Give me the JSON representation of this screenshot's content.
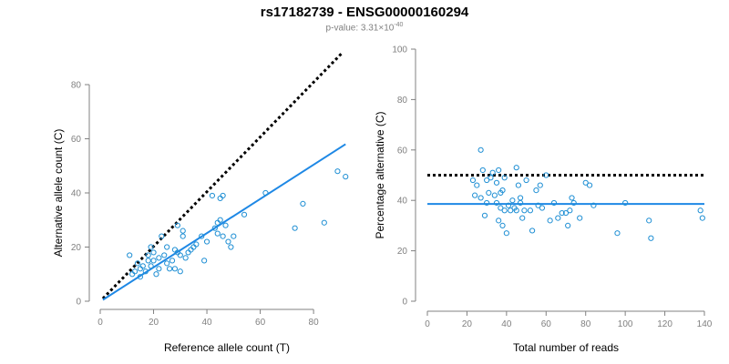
{
  "header": {
    "title": "rs17182739 - ENSG00000160294",
    "subtitle_prefix": "p-value: 3.31×10",
    "subtitle_exponent": "-40"
  },
  "colors": {
    "points": "#1f8fd4",
    "fit_line": "#1e88e5",
    "reference_line": "#000000",
    "axis": "#808080"
  },
  "chart_data": [
    {
      "type": "scatter",
      "xlabel": "Reference allele count (T)",
      "ylabel": "Alternative allele count (C)",
      "xlim": [
        0,
        95
      ],
      "ylim": [
        0,
        80
      ],
      "xticks": [
        0,
        20,
        40,
        60,
        80
      ],
      "yticks": [
        0,
        20,
        40,
        60,
        80
      ],
      "grid": false,
      "points": [
        [
          11,
          17
        ],
        [
          12,
          10
        ],
        [
          13,
          11
        ],
        [
          14,
          14
        ],
        [
          15,
          9
        ],
        [
          15,
          12
        ],
        [
          16,
          13
        ],
        [
          17,
          11
        ],
        [
          18,
          17
        ],
        [
          18,
          15
        ],
        [
          19,
          13
        ],
        [
          19,
          20
        ],
        [
          20,
          18
        ],
        [
          20,
          15
        ],
        [
          21,
          10
        ],
        [
          22,
          12
        ],
        [
          22,
          16
        ],
        [
          23,
          24
        ],
        [
          24,
          17
        ],
        [
          25,
          20
        ],
        [
          25,
          14
        ],
        [
          26,
          12
        ],
        [
          27,
          15
        ],
        [
          28,
          19
        ],
        [
          28,
          12
        ],
        [
          29,
          28
        ],
        [
          29,
          18
        ],
        [
          30,
          11
        ],
        [
          30,
          17
        ],
        [
          31,
          24
        ],
        [
          31,
          26
        ],
        [
          32,
          16
        ],
        [
          33,
          18
        ],
        [
          34,
          19
        ],
        [
          35,
          20
        ],
        [
          36,
          21
        ],
        [
          38,
          24
        ],
        [
          39,
          15
        ],
        [
          40,
          22
        ],
        [
          42,
          39
        ],
        [
          43,
          27
        ],
        [
          44,
          25
        ],
        [
          44,
          29
        ],
        [
          45,
          38
        ],
        [
          45,
          30
        ],
        [
          46,
          39
        ],
        [
          46,
          24
        ],
        [
          47,
          28
        ],
        [
          48,
          22
        ],
        [
          49,
          20
        ],
        [
          50,
          24
        ],
        [
          54,
          32
        ],
        [
          62,
          40
        ],
        [
          73,
          27
        ],
        [
          76,
          36
        ],
        [
          84,
          29
        ],
        [
          89,
          48
        ],
        [
          92,
          46
        ]
      ],
      "reference_line": {
        "type": "dotted",
        "points": [
          [
            1,
            1
          ],
          [
            91,
            92
          ]
        ]
      },
      "fit_line": {
        "type": "solid",
        "points": [
          [
            1,
            0.5
          ],
          [
            92,
            58
          ]
        ]
      }
    },
    {
      "type": "scatter",
      "xlabel": "Total number of reads",
      "ylabel": "Percentage alternative (C)",
      "xlim": [
        0,
        140
      ],
      "ylim": [
        0,
        100
      ],
      "xticks": [
        0,
        20,
        40,
        60,
        80,
        100,
        120,
        140
      ],
      "yticks": [
        0,
        20,
        40,
        60,
        80,
        100
      ],
      "grid": false,
      "points": [
        [
          23,
          48
        ],
        [
          24,
          42
        ],
        [
          25,
          46
        ],
        [
          27,
          41
        ],
        [
          27,
          60
        ],
        [
          28,
          52
        ],
        [
          29,
          34
        ],
        [
          30,
          39
        ],
        [
          30,
          48
        ],
        [
          31,
          43
        ],
        [
          32,
          49
        ],
        [
          33,
          51
        ],
        [
          34,
          42
        ],
        [
          35,
          39
        ],
        [
          35,
          47
        ],
        [
          36,
          32
        ],
        [
          36,
          52
        ],
        [
          37,
          37
        ],
        [
          37,
          43
        ],
        [
          38,
          44
        ],
        [
          38,
          30
        ],
        [
          39,
          36
        ],
        [
          39,
          49
        ],
        [
          40,
          27
        ],
        [
          41,
          38
        ],
        [
          42,
          36
        ],
        [
          43,
          40
        ],
        [
          44,
          37
        ],
        [
          45,
          36
        ],
        [
          45,
          53
        ],
        [
          46,
          46
        ],
        [
          47,
          41
        ],
        [
          47,
          39
        ],
        [
          48,
          33
        ],
        [
          49,
          36
        ],
        [
          50,
          48
        ],
        [
          52,
          36
        ],
        [
          53,
          28
        ],
        [
          55,
          44
        ],
        [
          56,
          38
        ],
        [
          57,
          46
        ],
        [
          58,
          37
        ],
        [
          60,
          50
        ],
        [
          62,
          32
        ],
        [
          64,
          39
        ],
        [
          66,
          33
        ],
        [
          68,
          35
        ],
        [
          70,
          35
        ],
        [
          71,
          30
        ],
        [
          72,
          36
        ],
        [
          73,
          41
        ],
        [
          74,
          39
        ],
        [
          77,
          33
        ],
        [
          80,
          47
        ],
        [
          82,
          46
        ],
        [
          84,
          38
        ],
        [
          96,
          27
        ],
        [
          100,
          39
        ],
        [
          112,
          32
        ],
        [
          113,
          25
        ],
        [
          138,
          36
        ],
        [
          139,
          33
        ]
      ],
      "reference_line": {
        "type": "dotted",
        "points": [
          [
            0,
            50
          ],
          [
            140,
            50
          ]
        ]
      },
      "fit_line": {
        "type": "solid",
        "points": [
          [
            0,
            38.6
          ],
          [
            140,
            38.6
          ]
        ]
      }
    }
  ]
}
